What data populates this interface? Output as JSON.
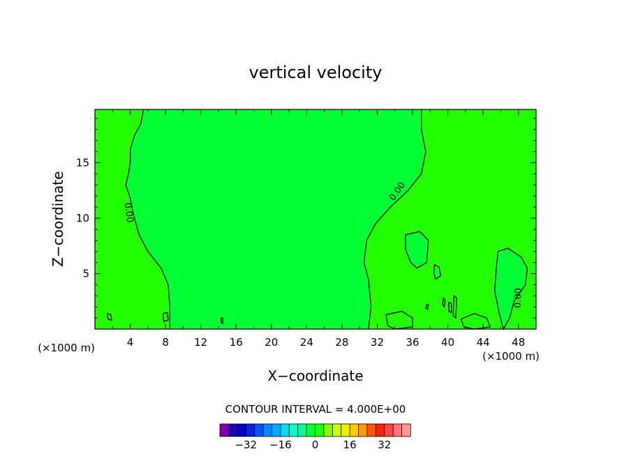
{
  "chart_data": {
    "type": "contour",
    "title": "vertical velocity",
    "xlabel": "X−coordinate",
    "ylabel": "Z−coordinate",
    "x_unit": "(×1000 m)",
    "y_unit": "(×1000 m)",
    "xlim": [
      0,
      50
    ],
    "ylim": [
      0,
      19.8
    ],
    "x_ticks": [
      4,
      8,
      12,
      16,
      20,
      24,
      28,
      32,
      36,
      40,
      44,
      48
    ],
    "y_ticks": [
      5,
      10,
      15
    ],
    "contour_interval_text": "CONTOUR INTERVAL = 4.000E+00",
    "contour_labels": [
      {
        "text": "0.00",
        "x": 3.8,
        "z": 10.5,
        "angle": 82
      },
      {
        "text": "0.00",
        "x": 34.3,
        "z": 12.4,
        "angle": -55
      },
      {
        "text": "0.00",
        "x": 48.0,
        "z": 2.8,
        "angle": -88
      }
    ],
    "regions": [
      {
        "name": "positive",
        "color": "#22ff00"
      },
      {
        "name": "negative",
        "color": "#00ff33"
      }
    ],
    "contours": [
      {
        "name": "left-zero-line",
        "points": [
          [
            5.5,
            19.8
          ],
          [
            5.2,
            18.5
          ],
          [
            4.5,
            17.5
          ],
          [
            4.0,
            16.2
          ],
          [
            4.0,
            15.0
          ],
          [
            3.8,
            14.0
          ],
          [
            3.5,
            13.0
          ],
          [
            4.0,
            11.8
          ],
          [
            4.3,
            10.5
          ],
          [
            5.0,
            8.5
          ],
          [
            6.0,
            7.0
          ],
          [
            7.5,
            5.5
          ],
          [
            8.3,
            4.0
          ],
          [
            8.5,
            2.0
          ],
          [
            8.5,
            0
          ]
        ]
      },
      {
        "name": "right-zero-line",
        "points": [
          [
            37.0,
            19.8
          ],
          [
            37.0,
            18.0
          ],
          [
            37.5,
            16.0
          ],
          [
            37.0,
            14.0
          ],
          [
            35.5,
            12.5
          ],
          [
            33.5,
            11.0
          ],
          [
            31.8,
            9.5
          ],
          [
            30.8,
            8.0
          ],
          [
            30.5,
            6.0
          ],
          [
            31.0,
            4.5
          ],
          [
            31.3,
            2.0
          ],
          [
            31.0,
            0
          ]
        ]
      },
      {
        "name": "loop-36",
        "closed": true,
        "points": [
          [
            35.2,
            8.5
          ],
          [
            36.8,
            8.8
          ],
          [
            37.8,
            8.0
          ],
          [
            37.6,
            6.0
          ],
          [
            36.5,
            5.5
          ],
          [
            35.8,
            6.0
          ],
          [
            35.2,
            7.2
          ]
        ]
      },
      {
        "name": "loop-39",
        "closed": true,
        "points": [
          [
            38.5,
            5.8
          ],
          [
            39.0,
            5.6
          ],
          [
            39.2,
            4.8
          ],
          [
            38.6,
            4.5
          ],
          [
            38.4,
            5.1
          ]
        ]
      },
      {
        "name": "loop-46",
        "closed": true,
        "points": [
          [
            45.7,
            7.0
          ],
          [
            46.8,
            7.3
          ],
          [
            48.3,
            6.5
          ],
          [
            49.0,
            5.5
          ],
          [
            48.8,
            4.0
          ],
          [
            47.5,
            2.5
          ],
          [
            47.0,
            1.0
          ],
          [
            46.3,
            0
          ],
          [
            45.8,
            1.5
          ],
          [
            45.3,
            3.5
          ],
          [
            45.5,
            5.5
          ]
        ]
      },
      {
        "name": "loop-42",
        "closed": true,
        "points": [
          [
            41.5,
            0.9
          ],
          [
            43.0,
            1.4
          ],
          [
            44.4,
            1.0
          ],
          [
            44.8,
            0.2
          ],
          [
            43.0,
            0
          ],
          [
            41.8,
            0.2
          ]
        ]
      },
      {
        "name": "loop-35",
        "closed": true,
        "points": [
          [
            33.0,
            1.3
          ],
          [
            34.8,
            1.6
          ],
          [
            36.0,
            1.0
          ],
          [
            36.0,
            0.2
          ],
          [
            34.0,
            0
          ],
          [
            33.2,
            0.3
          ]
        ]
      },
      {
        "name": "loop-40a",
        "closed": true,
        "points": [
          [
            40.1,
            2.4
          ],
          [
            40.4,
            2.3
          ],
          [
            40.4,
            1.5
          ],
          [
            40.1,
            1.6
          ]
        ]
      },
      {
        "name": "loop-40b",
        "closed": true,
        "points": [
          [
            40.7,
            3.0
          ],
          [
            41.0,
            2.8
          ],
          [
            40.9,
            1.0
          ],
          [
            40.6,
            1.2
          ]
        ]
      },
      {
        "name": "loop-39b",
        "closed": true,
        "points": [
          [
            39.5,
            2.8
          ],
          [
            39.7,
            2.6
          ],
          [
            39.6,
            2.0
          ],
          [
            39.4,
            2.2
          ]
        ]
      },
      {
        "name": "loop-38",
        "closed": true,
        "points": [
          [
            37.6,
            2.2
          ],
          [
            37.8,
            2.2
          ],
          [
            37.7,
            1.8
          ],
          [
            37.5,
            1.9
          ]
        ]
      },
      {
        "name": "loop-14",
        "closed": true,
        "points": [
          [
            14.3,
            1.0
          ],
          [
            14.5,
            1.0
          ],
          [
            14.5,
            0.5
          ],
          [
            14.3,
            0.6
          ]
        ]
      },
      {
        "name": "loop-9",
        "closed": true,
        "points": [
          [
            7.7,
            1.4
          ],
          [
            8.2,
            1.5
          ],
          [
            8.3,
            0.8
          ],
          [
            7.8,
            0.7
          ]
        ]
      },
      {
        "name": "loop-2",
        "closed": true,
        "points": [
          [
            1.4,
            1.4
          ],
          [
            1.8,
            1.3
          ],
          [
            1.9,
            0.8
          ],
          [
            1.5,
            0.9
          ]
        ]
      }
    ],
    "colorbar": {
      "colors": [
        "#8800aa",
        "#2200aa",
        "#0000cc",
        "#0022ee",
        "#0055ff",
        "#0088ff",
        "#00aaff",
        "#00ddee",
        "#00ffcc",
        "#00ff99",
        "#00ff33",
        "#22ff00",
        "#88ff00",
        "#ccff00",
        "#eeee00",
        "#ffcc00",
        "#ff9900",
        "#ff5500",
        "#ff2200",
        "#ff4444",
        "#ff7777",
        "#ff9999"
      ],
      "tick_labels": [
        "−32",
        "−16",
        "0",
        "16",
        "32"
      ],
      "tick_values": [
        -32,
        -16,
        0,
        16,
        32
      ],
      "range": [
        -44,
        44
      ]
    }
  }
}
